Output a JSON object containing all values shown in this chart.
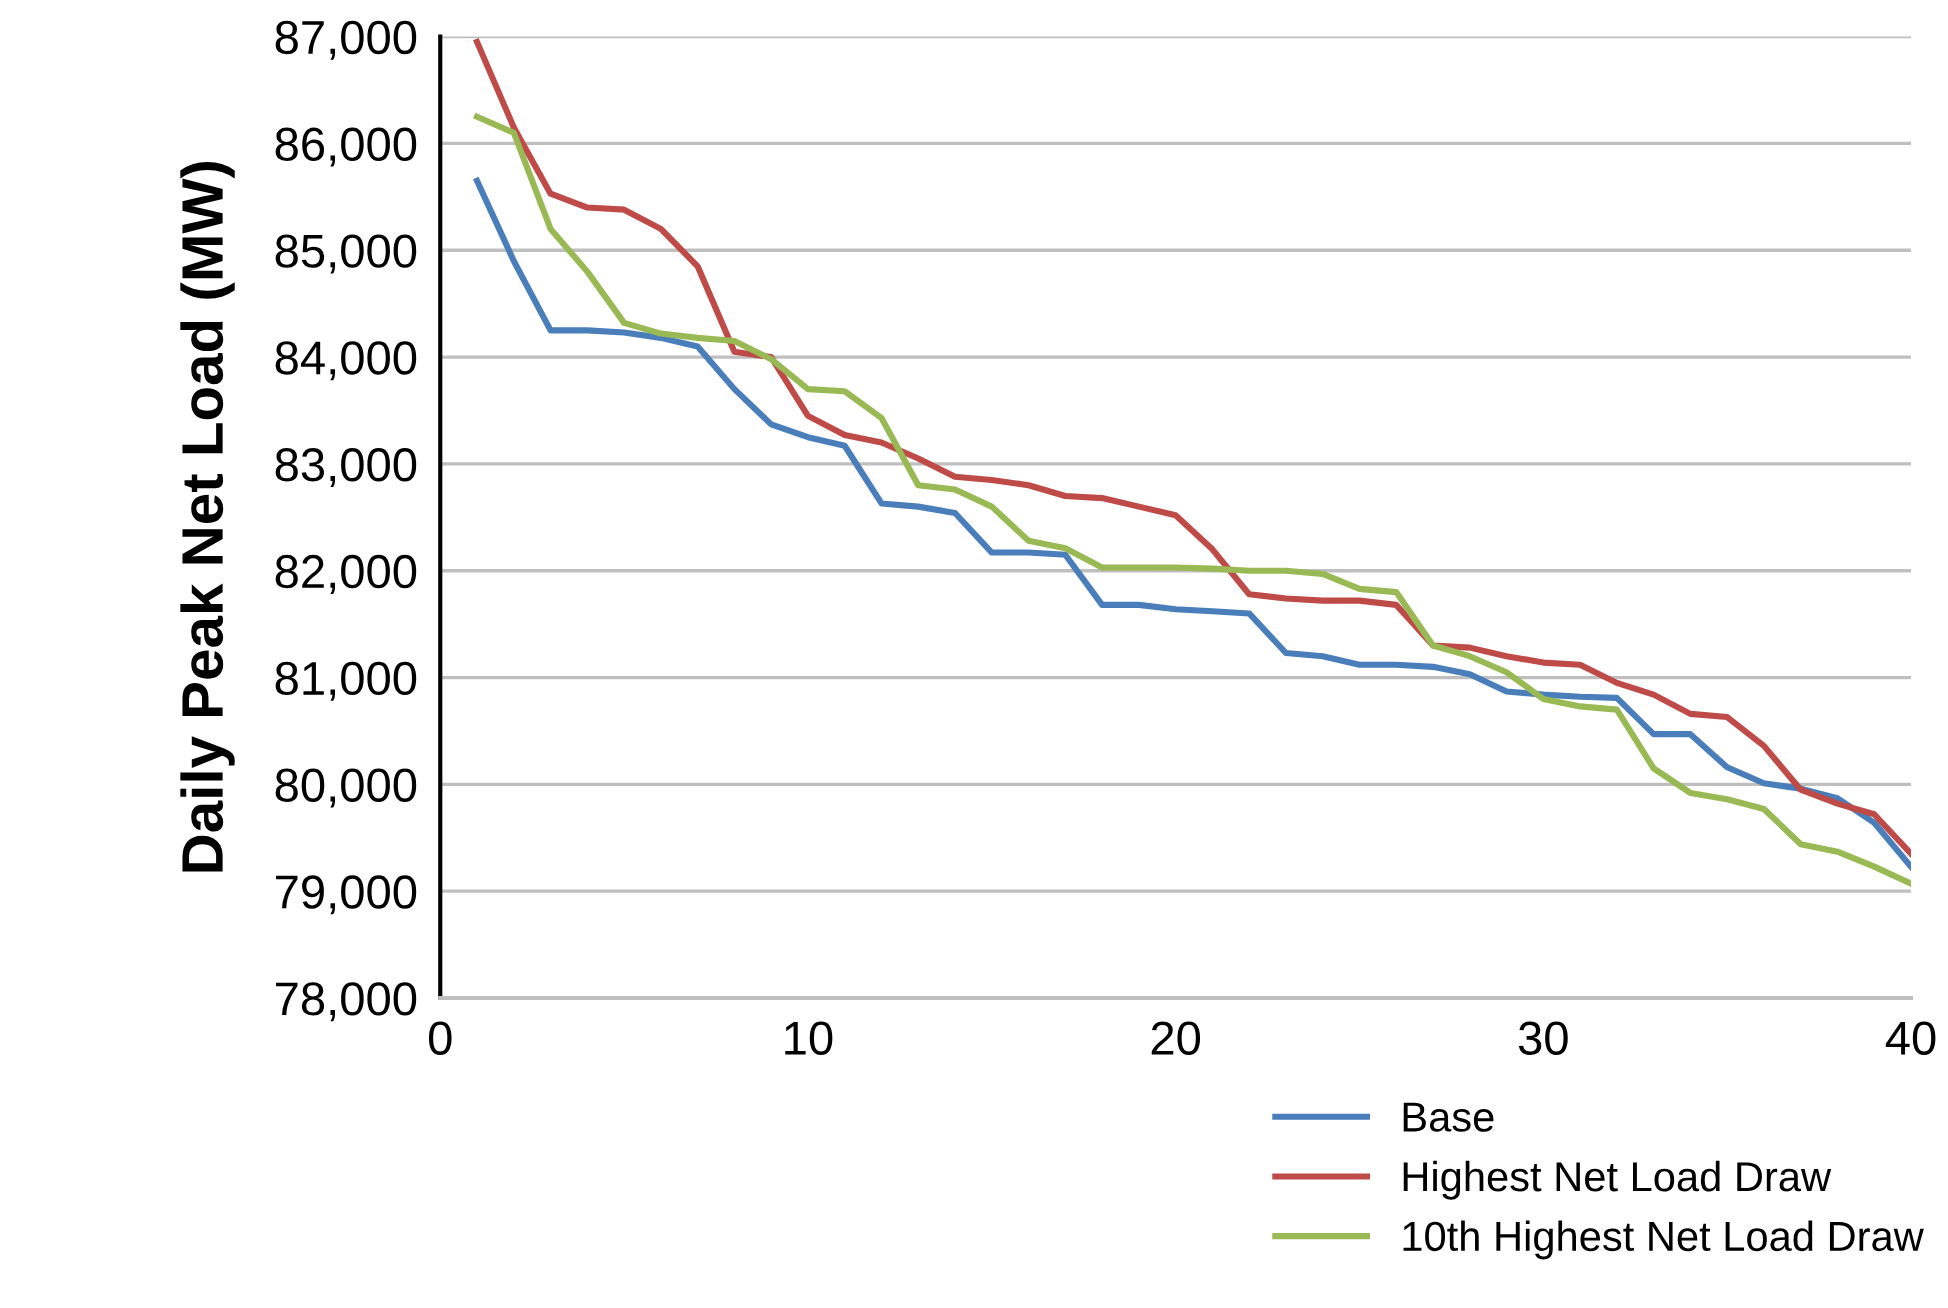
{
  "chart_data": {
    "type": "line",
    "ylabel": "Daily Peak Net Load (MW)",
    "x": [
      1,
      2,
      3,
      4,
      5,
      6,
      7,
      8,
      9,
      10,
      11,
      12,
      13,
      14,
      15,
      16,
      17,
      18,
      19,
      20,
      21,
      22,
      23,
      24,
      25,
      26,
      27,
      28,
      29,
      30,
      31,
      32,
      33,
      34,
      35,
      36,
      37,
      38,
      39,
      40
    ],
    "xlim": [
      0,
      40
    ],
    "xticks": [
      0,
      10,
      20,
      30,
      40
    ],
    "ylim": [
      78000,
      87000
    ],
    "yticks": [
      {
        "value": 78000,
        "label": "78,000"
      },
      {
        "value": 79000,
        "label": "79,000"
      },
      {
        "value": 80000,
        "label": "80,000"
      },
      {
        "value": 81000,
        "label": "81,000"
      },
      {
        "value": 82000,
        "label": "82,000"
      },
      {
        "value": 83000,
        "label": "83,000"
      },
      {
        "value": 84000,
        "label": "84,000"
      },
      {
        "value": 85000,
        "label": "85,000"
      },
      {
        "value": 86000,
        "label": "86,000"
      },
      {
        "value": 87000,
        "label": "87,000"
      }
    ],
    "grid": "y",
    "legend": "bottom right",
    "marker": "none",
    "line_style": "solid",
    "series": [
      {
        "name": "Base",
        "color": "#4a7ebb",
        "values": [
          85650,
          84900,
          84250,
          84250,
          84230,
          84180,
          84100,
          83700,
          83370,
          83250,
          83170,
          82630,
          82600,
          82540,
          82170,
          82170,
          82150,
          81680,
          81680,
          81640,
          81620,
          81600,
          81230,
          81200,
          81120,
          81120,
          81100,
          81030,
          80870,
          80840,
          80820,
          80810,
          80470,
          80470,
          80160,
          80010,
          79960,
          79870,
          79640,
          79230
        ]
      },
      {
        "name": "Highest Net Load Draw",
        "color": "#be4b48",
        "values": [
          86950,
          86150,
          85530,
          85400,
          85380,
          85200,
          84850,
          84050,
          84000,
          83450,
          83270,
          83200,
          83050,
          82880,
          82850,
          82800,
          82700,
          82680,
          82600,
          82520,
          82200,
          81780,
          81740,
          81720,
          81720,
          81680,
          81300,
          81280,
          81200,
          81140,
          81120,
          80950,
          80840,
          80660,
          80630,
          80360,
          79950,
          79820,
          79720,
          79350
        ]
      },
      {
        "name": "10th Highest Net Load Draw",
        "color": "#98b954",
        "values": [
          86250,
          86100,
          85200,
          84800,
          84320,
          84220,
          84180,
          84150,
          83980,
          83700,
          83680,
          83430,
          82800,
          82760,
          82600,
          82280,
          82210,
          82030,
          82030,
          82030,
          82020,
          82000,
          82000,
          81970,
          81830,
          81800,
          81300,
          81200,
          81050,
          80800,
          80730,
          80700,
          80150,
          79920,
          79860,
          79770,
          79440,
          79370,
          79230,
          79070
        ]
      }
    ]
  }
}
